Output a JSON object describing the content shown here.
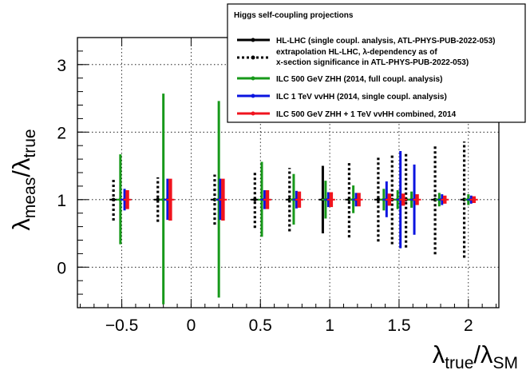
{
  "chart_data": {
    "type": "errorbar",
    "xlim": [
      -0.82,
      2.22
    ],
    "ylim": [
      -0.6,
      3.4
    ],
    "xticks": [
      {
        "value": -0.5,
        "label": "−0.5"
      },
      {
        "value": 0,
        "label": "0"
      },
      {
        "value": 0.5,
        "label": "0.5"
      },
      {
        "value": 1,
        "label": "1"
      },
      {
        "value": 1.5,
        "label": "1.5"
      },
      {
        "value": 2,
        "label": "2"
      }
    ],
    "yticks": [
      {
        "value": 0,
        "label": "0"
      },
      {
        "value": 1,
        "label": "1"
      },
      {
        "value": 2,
        "label": "2"
      },
      {
        "value": 3,
        "label": "3"
      }
    ],
    "grid": true,
    "xlabel": {
      "main": "λ",
      "sub1": "true",
      "sep": "/λ",
      "sub2": "SM"
    },
    "ylabel": {
      "main": "λ",
      "sub1": "meas",
      "sep": "/λ",
      "sub2": "true"
    },
    "legend": {
      "position": "top-right",
      "title": "Higgs self-coupling projections",
      "entries": [
        {
          "series": "hl_lhc",
          "lines": [
            "HL-LHC (single coupl. analysis, ATL-PHYS-PUB-2022-053)"
          ]
        },
        {
          "series": "hl_lhc_extrap",
          "lines": [
            "extrapolation HL-LHC, λ-dependency as of",
            "x-section significance in ATL-PHYS-PUB-2022-053)"
          ]
        },
        {
          "series": "ilc500",
          "lines": [
            "ILC 500 GeV ZHH (2014, full coupl. analysis)"
          ]
        },
        {
          "series": "ilc1tev",
          "lines": [
            "ILC 1 TeV vvHH (2014, single coupl. analysis)"
          ]
        },
        {
          "series": "ilc_comb",
          "lines": [
            "ILC 500 GeV ZHH + 1 TeV vvHH combined, 2014"
          ]
        }
      ]
    },
    "series": [
      {
        "key": "hl_lhc",
        "name": "HL-LHC",
        "color": "#000000",
        "style": "solid",
        "width": 3,
        "points": [
          {
            "x": 0.95,
            "y": 1.0,
            "lo": 0.5,
            "hi": 1.5
          }
        ]
      },
      {
        "key": "hl_lhc_extrap",
        "name": "extrapolation HL-LHC",
        "color": "#000000",
        "style": "dotted",
        "width": 3.2,
        "points": [
          {
            "x": -0.56,
            "y": 1.0,
            "lo": 0.69,
            "hi": 1.31
          },
          {
            "x": -0.24,
            "y": 1.0,
            "lo": 0.67,
            "hi": 1.33
          },
          {
            "x": 0.17,
            "y": 1.0,
            "lo": 0.63,
            "hi": 1.37
          },
          {
            "x": 0.46,
            "y": 1.0,
            "lo": 0.58,
            "hi": 1.42
          },
          {
            "x": 0.71,
            "y": 1.0,
            "lo": 0.53,
            "hi": 1.47
          },
          {
            "x": 1.14,
            "y": 1.0,
            "lo": 0.44,
            "hi": 1.56
          },
          {
            "x": 1.35,
            "y": 1.0,
            "lo": 0.38,
            "hi": 1.62
          },
          {
            "x": 1.45,
            "y": 1.0,
            "lo": 0.34,
            "hi": 1.66
          },
          {
            "x": 1.55,
            "y": 1.0,
            "lo": 0.29,
            "hi": 1.71
          },
          {
            "x": 1.76,
            "y": 1.0,
            "lo": 0.19,
            "hi": 1.81
          },
          {
            "x": 1.97,
            "y": 1.0,
            "lo": 0.14,
            "hi": 1.86
          }
        ]
      },
      {
        "key": "ilc500",
        "name": "ILC 500 GeV ZHH",
        "color": "#17991a",
        "style": "solid",
        "width": 3,
        "points": [
          {
            "x": -0.51,
            "y": 1.0,
            "lo": 0.34,
            "hi": 1.67
          },
          {
            "x": -0.2,
            "y": 1.0,
            "lo": -0.55,
            "hi": 2.57
          },
          {
            "x": 0.2,
            "y": 1.0,
            "lo": -0.45,
            "hi": 2.46
          },
          {
            "x": 0.51,
            "y": 1.0,
            "lo": 0.45,
            "hi": 1.56
          },
          {
            "x": 0.74,
            "y": 1.0,
            "lo": 0.63,
            "hi": 1.38
          },
          {
            "x": 0.97,
            "y": 1.0,
            "lo": 0.72,
            "hi": 1.28
          },
          {
            "x": 1.17,
            "y": 1.0,
            "lo": 0.8,
            "hi": 1.21
          },
          {
            "x": 1.39,
            "y": 1.0,
            "lo": 0.84,
            "hi": 1.16
          },
          {
            "x": 1.49,
            "y": 1.0,
            "lo": 0.86,
            "hi": 1.14
          },
          {
            "x": 1.59,
            "y": 1.0,
            "lo": 0.88,
            "hi": 1.12
          },
          {
            "x": 1.79,
            "y": 1.0,
            "lo": 0.9,
            "hi": 1.1
          },
          {
            "x": 2.0,
            "y": 1.0,
            "lo": 0.92,
            "hi": 1.08
          }
        ]
      },
      {
        "key": "ilc1tev",
        "name": "ILC 1 TeV vvHH",
        "color": "#0b14e0",
        "style": "solid",
        "width": 3,
        "points": [
          {
            "x": -0.48,
            "y": 1.0,
            "lo": 0.84,
            "hi": 1.16
          },
          {
            "x": -0.17,
            "y": 1.0,
            "lo": 0.7,
            "hi": 1.31
          },
          {
            "x": 0.21,
            "y": 1.0,
            "lo": 0.7,
            "hi": 1.31
          },
          {
            "x": 0.53,
            "y": 1.0,
            "lo": 0.86,
            "hi": 1.14
          },
          {
            "x": 0.76,
            "y": 1.0,
            "lo": 0.87,
            "hi": 1.13
          },
          {
            "x": 0.99,
            "y": 1.0,
            "lo": 0.89,
            "hi": 1.11
          },
          {
            "x": 1.19,
            "y": 1.0,
            "lo": 0.9,
            "hi": 1.1
          },
          {
            "x": 1.41,
            "y": 1.0,
            "lo": 0.74,
            "hi": 1.27
          },
          {
            "x": 1.51,
            "y": 1.0,
            "lo": 0.28,
            "hi": 1.72
          },
          {
            "x": 1.61,
            "y": 1.0,
            "lo": 0.48,
            "hi": 1.52
          },
          {
            "x": 1.81,
            "y": 1.0,
            "lo": 0.92,
            "hi": 1.08
          },
          {
            "x": 2.02,
            "y": 1.0,
            "lo": 0.94,
            "hi": 1.06
          }
        ]
      },
      {
        "key": "ilc_comb",
        "name": "ILC combined",
        "color": "#f0141e",
        "style": "solid",
        "width": 4.5,
        "points": [
          {
            "x": -0.46,
            "y": 1.0,
            "lo": 0.86,
            "hi": 1.14
          },
          {
            "x": -0.15,
            "y": 1.0,
            "lo": 0.69,
            "hi": 1.31
          },
          {
            "x": 0.23,
            "y": 1.0,
            "lo": 0.69,
            "hi": 1.31
          },
          {
            "x": 0.55,
            "y": 1.0,
            "lo": 0.86,
            "hi": 1.14
          },
          {
            "x": 0.78,
            "y": 1.0,
            "lo": 0.88,
            "hi": 1.12
          },
          {
            "x": 1.01,
            "y": 1.0,
            "lo": 0.89,
            "hi": 1.11
          },
          {
            "x": 1.21,
            "y": 1.0,
            "lo": 0.9,
            "hi": 1.1
          },
          {
            "x": 1.43,
            "y": 1.0,
            "lo": 0.91,
            "hi": 1.09
          },
          {
            "x": 1.53,
            "y": 1.0,
            "lo": 0.91,
            "hi": 1.09
          },
          {
            "x": 1.63,
            "y": 1.0,
            "lo": 0.92,
            "hi": 1.08
          },
          {
            "x": 1.83,
            "y": 1.0,
            "lo": 0.94,
            "hi": 1.06
          },
          {
            "x": 2.04,
            "y": 1.0,
            "lo": 0.95,
            "hi": 1.05
          }
        ]
      }
    ]
  }
}
